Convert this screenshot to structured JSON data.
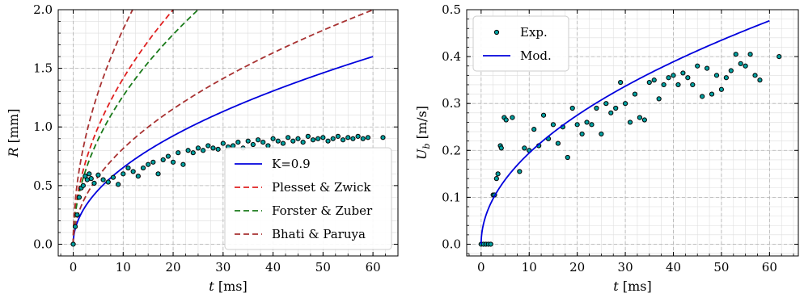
{
  "chart_data": [
    {
      "type": "scatter+line",
      "xlabel": "t [ms]",
      "ylabel": "R [mm]",
      "xlim": [
        -3,
        65
      ],
      "ylim": [
        -0.1,
        2.0
      ],
      "xticks": [
        0,
        10,
        20,
        30,
        40,
        50,
        60
      ],
      "yticks": [
        0.0,
        0.5,
        1.0,
        1.5,
        2.0
      ],
      "xtick_labels": [
        "0",
        "10",
        "20",
        "30",
        "40",
        "50",
        "60"
      ],
      "ytick_labels": [
        "0.0",
        "0.5",
        "1.0",
        "1.5",
        "2.0"
      ],
      "grid": true,
      "legend_position": "lower-right",
      "series": [
        {
          "name": "K=0.9",
          "kind": "line",
          "color": "#0000dd",
          "dash": "solid",
          "model": "sqrt",
          "coef": 0.2066,
          "tmax": 60
        },
        {
          "name": "Plesset & Zwick",
          "kind": "line",
          "color": "#e02020",
          "dash": "dashed",
          "model": "sqrt",
          "coef": 0.447,
          "tmax": 60
        },
        {
          "name": "Forster & Zuber",
          "kind": "line",
          "color": "#1a7a1a",
          "dash": "dashed",
          "model": "sqrt",
          "coef": 0.4,
          "tmax": 60
        },
        {
          "name": "Bhati & Paruya",
          "kind": "line",
          "color": "#a83232",
          "dash": "dashed",
          "model": "sqrt",
          "coef": 0.258,
          "tmax": 60
        },
        {
          "name": "",
          "kind": "line",
          "color": "#a83232",
          "dash": "dashed",
          "model": "sqrt",
          "coef": 0.58,
          "tmax": 60
        },
        {
          "name": "",
          "kind": "scatter",
          "color": "#00a0a0",
          "x": [
            0,
            0.4,
            0.8,
            1.2,
            1.6,
            2.0,
            2.4,
            2.8,
            3.2,
            3.6,
            4.2,
            5.0,
            6.0,
            7.0,
            8.0,
            9.0,
            10.0,
            11.0,
            12.0,
            13.0,
            14.0,
            15.0,
            16.0,
            17.0,
            18.0,
            19.0,
            20.0,
            21.0,
            22.0,
            23.0,
            24.0,
            25.0,
            26.0,
            27.0,
            28.0,
            29.0,
            30.0,
            31.0,
            32.0,
            33.0,
            34.0,
            35.0,
            36.0,
            37.0,
            38.0,
            39.0,
            40.0,
            41.0,
            42.0,
            43.0,
            44.0,
            45.0,
            46.0,
            47.0,
            48.0,
            49.0,
            50.0,
            51.0,
            52.0,
            53.0,
            54.0,
            55.0,
            56.0,
            57.0,
            58.0,
            59.0,
            62.0
          ],
          "y": [
            0.0,
            0.15,
            0.25,
            0.4,
            0.48,
            0.5,
            0.58,
            0.55,
            0.6,
            0.56,
            0.52,
            0.59,
            0.55,
            0.53,
            0.57,
            0.51,
            0.6,
            0.65,
            0.62,
            0.58,
            0.65,
            0.68,
            0.7,
            0.6,
            0.72,
            0.75,
            0.7,
            0.78,
            0.68,
            0.8,
            0.78,
            0.82,
            0.8,
            0.84,
            0.82,
            0.81,
            0.86,
            0.83,
            0.84,
            0.87,
            0.82,
            0.88,
            0.85,
            0.89,
            0.87,
            0.84,
            0.9,
            0.88,
            0.86,
            0.91,
            0.88,
            0.9,
            0.87,
            0.92,
            0.89,
            0.9,
            0.91,
            0.88,
            0.9,
            0.92,
            0.89,
            0.91,
            0.9,
            0.92,
            0.9,
            0.91,
            0.91
          ]
        }
      ]
    },
    {
      "type": "scatter+line",
      "xlabel": "t [ms]",
      "ylabel": "U_b [m/s]",
      "xlim": [
        -3,
        66
      ],
      "ylim": [
        -0.025,
        0.5
      ],
      "xticks": [
        0,
        10,
        20,
        30,
        40,
        50,
        60
      ],
      "yticks": [
        0.0,
        0.1,
        0.2,
        0.3,
        0.4,
        0.5
      ],
      "xtick_labels": [
        "0",
        "10",
        "20",
        "30",
        "40",
        "50",
        "60"
      ],
      "ytick_labels": [
        "0.0",
        "0.1",
        "0.2",
        "0.3",
        "0.4",
        "0.5"
      ],
      "grid": true,
      "legend_position": "upper-left",
      "series": [
        {
          "name": "Exp.",
          "kind": "scatter",
          "color": "#00a0a0",
          "x": [
            0,
            0.5,
            1.0,
            1.5,
            2.0,
            2.5,
            2.8,
            3.2,
            3.5,
            4.0,
            4.2,
            4.8,
            5.2,
            6.5,
            8.0,
            9.0,
            10.0,
            11.0,
            12.0,
            13.0,
            14.0,
            15.0,
            16.0,
            17.0,
            18.0,
            19.0,
            20.0,
            21.0,
            22.0,
            23.0,
            24.0,
            25.0,
            26.0,
            27.0,
            28.0,
            29.0,
            30.0,
            31.0,
            32.0,
            33.0,
            34.0,
            35.0,
            36.0,
            37.0,
            38.0,
            39.0,
            40.0,
            41.0,
            42.0,
            43.0,
            44.0,
            45.0,
            46.0,
            47.0,
            48.0,
            49.0,
            50.0,
            51.0,
            52.0,
            53.0,
            54.0,
            55.0,
            56.0,
            57.0,
            58.0,
            62.0
          ],
          "y": [
            0.0,
            0.0,
            0.0,
            0.0,
            0.0,
            0.105,
            0.105,
            0.14,
            0.15,
            0.21,
            0.205,
            0.27,
            0.265,
            0.27,
            0.155,
            0.205,
            0.2,
            0.245,
            0.21,
            0.275,
            0.225,
            0.255,
            0.215,
            0.25,
            0.185,
            0.29,
            0.255,
            0.235,
            0.26,
            0.255,
            0.29,
            0.235,
            0.3,
            0.28,
            0.29,
            0.345,
            0.3,
            0.26,
            0.32,
            0.27,
            0.265,
            0.345,
            0.35,
            0.31,
            0.34,
            0.355,
            0.36,
            0.34,
            0.365,
            0.355,
            0.34,
            0.38,
            0.315,
            0.375,
            0.32,
            0.36,
            0.33,
            0.355,
            0.37,
            0.405,
            0.385,
            0.38,
            0.405,
            0.36,
            0.35,
            0.4
          ]
        },
        {
          "name": "Mod.",
          "kind": "line",
          "color": "#0000dd",
          "dash": "solid",
          "model": "sqrt",
          "coef": 0.0615,
          "tmax": 60
        }
      ]
    }
  ]
}
